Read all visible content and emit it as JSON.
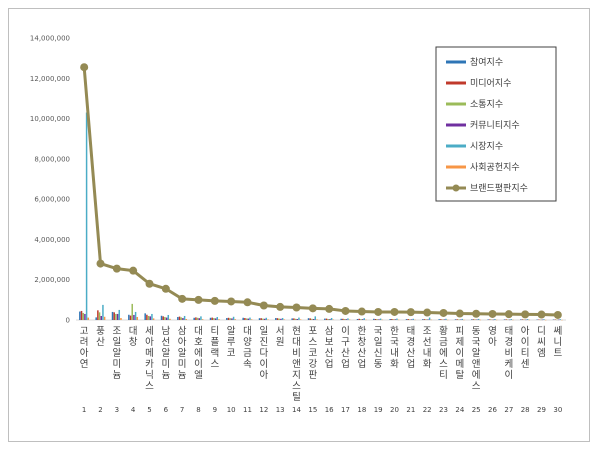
{
  "chart_data": {
    "type": "bar",
    "ylim": [
      0,
      14000000
    ],
    "yticks": [
      "0",
      "2,000,000",
      "4,000,000",
      "6,000,000",
      "8,000,000",
      "10,000,000",
      "12,000,000",
      "14,000,000"
    ],
    "ytick_values": [
      0,
      2000000,
      4000000,
      6000000,
      8000000,
      10000000,
      12000000,
      14000000
    ],
    "categories": [
      "고려아연",
      "풍산",
      "조일알미늄",
      "대창",
      "세아메카닉스",
      "남선알미늄",
      "삼아알미늄",
      "대호에이엘",
      "티플랙스",
      "알루코",
      "대양금속",
      "일진다이아",
      "서원",
      "현대비앤지스틸",
      "포스코강판",
      "삼보산업",
      "이구산업",
      "한창산업",
      "국일신동",
      "한국내화",
      "태경산업",
      "조선내화",
      "황금에스티",
      "피제이메탈",
      "동국알앤에스",
      "영아",
      "태경비케이",
      "아이티센",
      "디씨엠",
      "쎄니트"
    ],
    "ranks": [
      "1",
      "2",
      "3",
      "4",
      "5",
      "6",
      "7",
      "8",
      "9",
      "10",
      "11",
      "12",
      "13",
      "14",
      "15",
      "16",
      "17",
      "18",
      "19",
      "20",
      "21",
      "22",
      "23",
      "24",
      "25",
      "26",
      "27",
      "28",
      "29",
      "30"
    ],
    "grid": false,
    "legend_position": "top-right",
    "series": [
      {
        "name": "참여지수",
        "color": "#2e75b6",
        "kind": "bar",
        "values": [
          420000,
          130000,
          400000,
          260000,
          330000,
          210000,
          150000,
          110000,
          110000,
          100000,
          110000,
          90000,
          100000,
          80000,
          90000,
          70000,
          60000,
          50000,
          60000,
          50000,
          45000,
          40000,
          40000,
          35000,
          35000,
          30000,
          30000,
          30000,
          25000,
          25000
        ]
      },
      {
        "name": "미디어지수",
        "color": "#c0392b",
        "kind": "bar",
        "values": [
          450000,
          480000,
          380000,
          220000,
          260000,
          180000,
          170000,
          130000,
          120000,
          110000,
          100000,
          90000,
          90000,
          80000,
          80000,
          70000,
          60000,
          60000,
          50000,
          50000,
          45000,
          40000,
          40000,
          35000,
          35000,
          30000,
          30000,
          30000,
          25000,
          25000
        ]
      },
      {
        "name": "소통지수",
        "color": "#9bbb59",
        "kind": "bar",
        "values": [
          350000,
          380000,
          300000,
          800000,
          200000,
          150000,
          130000,
          110000,
          100000,
          90000,
          80000,
          70000,
          70000,
          60000,
          60000,
          50000,
          50000,
          45000,
          40000,
          40000,
          35000,
          35000,
          30000,
          30000,
          30000,
          25000,
          25000,
          25000,
          20000,
          20000
        ]
      },
      {
        "name": "커뮤니티지수",
        "color": "#7030a0",
        "kind": "bar",
        "values": [
          300000,
          200000,
          300000,
          250000,
          180000,
          120000,
          100000,
          90000,
          80000,
          80000,
          70000,
          60000,
          60000,
          50000,
          50000,
          45000,
          40000,
          40000,
          35000,
          35000,
          30000,
          30000,
          30000,
          25000,
          25000,
          20000,
          20000,
          20000,
          20000,
          20000
        ]
      },
      {
        "name": "시장지수",
        "color": "#4bacc6",
        "kind": "bar",
        "values": [
          10300000,
          750000,
          500000,
          400000,
          300000,
          250000,
          200000,
          180000,
          150000,
          160000,
          120000,
          110000,
          100000,
          120000,
          180000,
          100000,
          80000,
          90000,
          70000,
          70000,
          60000,
          120000,
          60000,
          55000,
          55000,
          50000,
          45000,
          45000,
          40000,
          40000
        ]
      },
      {
        "name": "사회공헌지수",
        "color": "#f79646",
        "kind": "bar",
        "values": [
          120000,
          160000,
          100000,
          150000,
          80000,
          60000,
          50000,
          40000,
          40000,
          40000,
          35000,
          30000,
          30000,
          30000,
          30000,
          25000,
          25000,
          20000,
          20000,
          20000,
          20000,
          20000,
          15000,
          15000,
          15000,
          15000,
          15000,
          15000,
          10000,
          10000
        ]
      },
      {
        "name": "브랜드평판지수",
        "color": "#948a54",
        "kind": "line",
        "values": [
          12550000,
          2800000,
          2550000,
          2450000,
          1800000,
          1550000,
          1050000,
          1000000,
          950000,
          920000,
          880000,
          720000,
          650000,
          620000,
          580000,
          550000,
          450000,
          420000,
          400000,
          400000,
          390000,
          370000,
          350000,
          320000,
          310000,
          300000,
          290000,
          280000,
          270000,
          250000
        ]
      }
    ]
  }
}
